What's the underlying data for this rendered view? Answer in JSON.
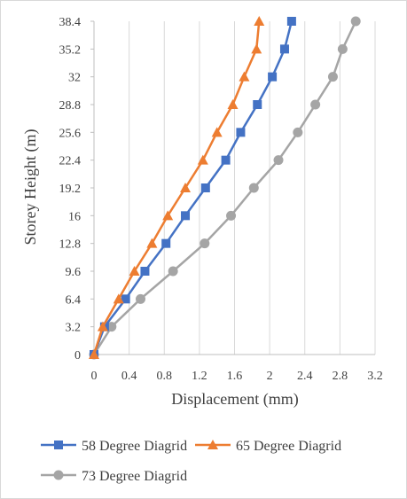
{
  "chart_data": {
    "type": "line",
    "xlabel": "Displacement (mm)",
    "ylabel": "Storey Height (m)",
    "xlim": [
      0,
      3.2
    ],
    "ylim": [
      0,
      38.4
    ],
    "x_ticks": [
      0,
      0.4,
      0.8,
      1.2,
      1.6,
      2,
      2.4,
      2.8,
      3.2
    ],
    "y_ticks": [
      0,
      3.2,
      6.4,
      9.6,
      12.8,
      16,
      19.2,
      22.4,
      25.6,
      28.8,
      32,
      35.2,
      38.4
    ],
    "x_gridlines": true,
    "y_gridlines": false,
    "legend_position": "bottom",
    "series": [
      {
        "name": "58 Degree Diagrid",
        "color": "#4472c4",
        "marker": "square",
        "points": [
          {
            "x": 0,
            "y": 0
          },
          {
            "x": 0.12,
            "y": 3.2
          },
          {
            "x": 0.36,
            "y": 6.4
          },
          {
            "x": 0.58,
            "y": 9.6
          },
          {
            "x": 0.82,
            "y": 12.8
          },
          {
            "x": 1.04,
            "y": 16
          },
          {
            "x": 1.27,
            "y": 19.2
          },
          {
            "x": 1.5,
            "y": 22.4
          },
          {
            "x": 1.67,
            "y": 25.6
          },
          {
            "x": 1.86,
            "y": 28.8
          },
          {
            "x": 2.03,
            "y": 32
          },
          {
            "x": 2.17,
            "y": 35.2
          },
          {
            "x": 2.25,
            "y": 38.4
          }
        ]
      },
      {
        "name": "65 Degree Diagrid",
        "color": "#ed7d31",
        "marker": "triangle",
        "points": [
          {
            "x": 0,
            "y": 0
          },
          {
            "x": 0.1,
            "y": 3.2
          },
          {
            "x": 0.28,
            "y": 6.4
          },
          {
            "x": 0.46,
            "y": 9.6
          },
          {
            "x": 0.66,
            "y": 12.8
          },
          {
            "x": 0.84,
            "y": 16
          },
          {
            "x": 1.04,
            "y": 19.2
          },
          {
            "x": 1.24,
            "y": 22.4
          },
          {
            "x": 1.4,
            "y": 25.6
          },
          {
            "x": 1.58,
            "y": 28.8
          },
          {
            "x": 1.71,
            "y": 32
          },
          {
            "x": 1.85,
            "y": 35.2
          },
          {
            "x": 1.88,
            "y": 38.4
          }
        ]
      },
      {
        "name": "73 Degree Diagrid",
        "color": "#a5a5a5",
        "marker": "circle",
        "points": [
          {
            "x": 0,
            "y": 0
          },
          {
            "x": 0.2,
            "y": 3.2
          },
          {
            "x": 0.53,
            "y": 6.4
          },
          {
            "x": 0.9,
            "y": 9.6
          },
          {
            "x": 1.26,
            "y": 12.8
          },
          {
            "x": 1.56,
            "y": 16
          },
          {
            "x": 1.82,
            "y": 19.2
          },
          {
            "x": 2.1,
            "y": 22.4
          },
          {
            "x": 2.32,
            "y": 25.6
          },
          {
            "x": 2.52,
            "y": 28.8
          },
          {
            "x": 2.72,
            "y": 32
          },
          {
            "x": 2.83,
            "y": 35.2
          },
          {
            "x": 2.98,
            "y": 38.4
          }
        ]
      }
    ]
  }
}
